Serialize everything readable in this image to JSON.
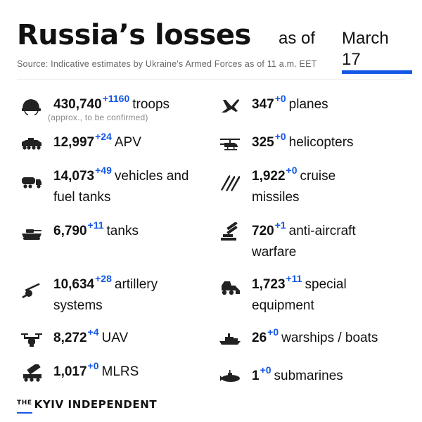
{
  "title": {
    "main": "Russia’s losses",
    "as_of": "as of",
    "date": "March 17"
  },
  "source": "Source: Indicative estimates by Ukraine's Armed Forces as of 11 a.m. EET",
  "troops_note": "(approx., to be confirmed)",
  "items": [
    {
      "icon": "helmet-icon",
      "value": "430,740",
      "delta": "+1160",
      "label": "troops"
    },
    {
      "icon": "plane-icon",
      "value": "347",
      "delta": "+0",
      "label": "planes"
    },
    {
      "icon": "apv-icon",
      "value": "12,997",
      "delta": "+24",
      "label": "APV"
    },
    {
      "icon": "helicopter-icon",
      "value": "325",
      "delta": "+0",
      "label": "helicopters"
    },
    {
      "icon": "fuel-truck-icon",
      "value": "14,073",
      "delta": "+49",
      "label": "vehicles and",
      "label2": "fuel tanks"
    },
    {
      "icon": "cruise-missiles-icon",
      "value": "1,922",
      "delta": "+0",
      "label": "cruise",
      "label2": "missiles"
    },
    {
      "icon": "tank-icon",
      "value": "6,790",
      "delta": "+11",
      "label": "tanks"
    },
    {
      "icon": "anti-aircraft-icon",
      "value": "720",
      "delta": "+1",
      "label": "anti-aircraft",
      "label2": "warfare"
    },
    {
      "icon": "artillery-icon",
      "value": "10,634",
      "delta": "+28",
      "label": "artillery",
      "label2": "systems"
    },
    {
      "icon": "special-equipment-icon",
      "value": "1,723",
      "delta": "+11",
      "label": "special",
      "label2": "equipment"
    },
    {
      "icon": "drone-icon",
      "value": "8,272",
      "delta": "+4",
      "label": "UAV"
    },
    {
      "icon": "warship-icon",
      "value": "26",
      "delta": "+0",
      "label": "warships / boats"
    },
    {
      "icon": "mlrs-icon",
      "value": "1,017",
      "delta": "+0",
      "label": "MLRS"
    },
    {
      "icon": "submarine-icon",
      "value": "1",
      "delta": "+0",
      "label": "submarines"
    }
  ],
  "brand": {
    "the": "THE",
    "name": "KYIV INDEPENDENT"
  },
  "colors": {
    "accent": "#1456e6",
    "text": "#111111",
    "muted": "#666666"
  }
}
